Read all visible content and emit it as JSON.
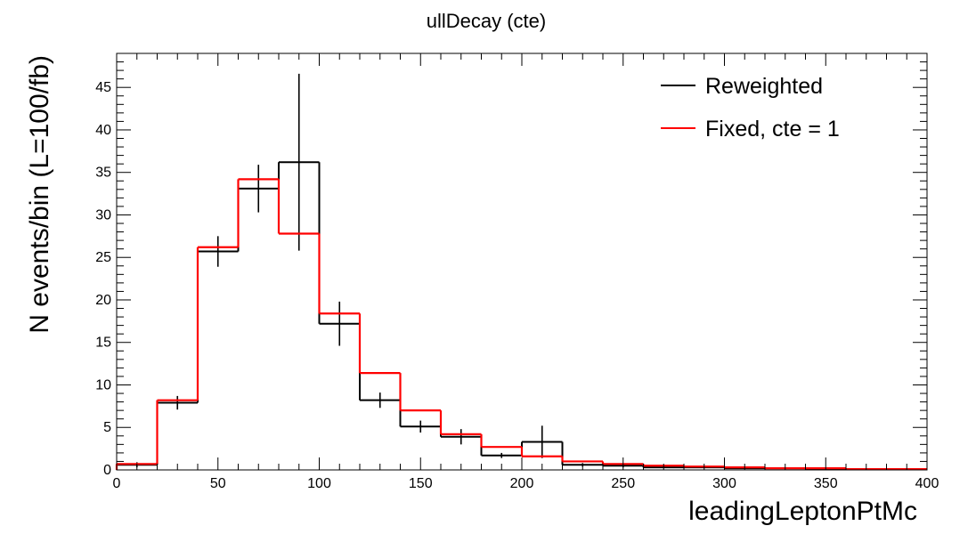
{
  "chart_data": {
    "type": "line",
    "title": "ullDecay (cte)",
    "xlabel": "leadingLeptonPtMc",
    "ylabel": "N events/bin (L=100/fb)",
    "xlim": [
      0,
      400
    ],
    "ylim": [
      0,
      49
    ],
    "x_ticks": [
      0,
      50,
      100,
      150,
      200,
      250,
      300,
      350,
      400
    ],
    "y_ticks": [
      0,
      5,
      10,
      15,
      20,
      25,
      30,
      35,
      40,
      45
    ],
    "bin_edges": [
      0,
      20,
      40,
      60,
      80,
      100,
      120,
      140,
      160,
      180,
      200,
      220,
      240,
      260,
      280,
      300,
      320,
      340,
      360,
      380,
      400
    ],
    "legend_position": "top-right",
    "grid": false,
    "series": [
      {
        "name": "Reweighted",
        "color": "#000000",
        "style": "histogram-with-error-bars",
        "values": [
          0.6,
          7.9,
          25.7,
          33.1,
          36.2,
          17.2,
          8.2,
          5.1,
          3.9,
          1.7,
          3.3,
          0.6,
          0.5,
          0.3,
          0.3,
          0.2,
          0.2,
          0.1,
          0.1,
          0.1
        ],
        "errors": [
          0.3,
          0.8,
          1.8,
          2.8,
          10.4,
          2.6,
          0.9,
          0.7,
          0.9,
          0.3,
          1.9,
          0.2,
          0.2,
          0.1,
          0.1,
          0.1,
          0.1,
          0.05,
          0.05,
          0.05
        ]
      },
      {
        "name": "Fixed, cte = 1",
        "color": "#ff0000",
        "style": "histogram",
        "values": [
          0.7,
          8.2,
          26.2,
          34.2,
          27.8,
          18.4,
          11.4,
          7.0,
          4.2,
          2.7,
          1.6,
          1.0,
          0.7,
          0.5,
          0.4,
          0.3,
          0.2,
          0.2,
          0.1,
          0.1
        ]
      }
    ]
  }
}
